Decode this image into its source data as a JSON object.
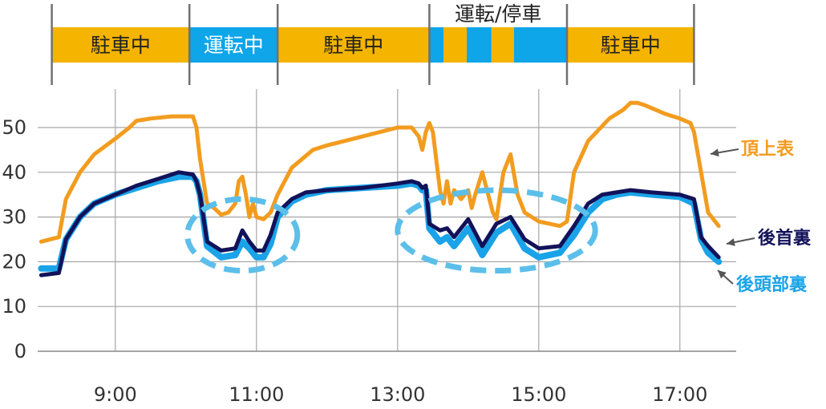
{
  "chart_data": {
    "type": "line",
    "title": "",
    "xlabel": "",
    "ylabel": "",
    "xlim": [
      7.9,
      17.6
    ],
    "ylim": [
      0,
      55
    ],
    "x_ticks": [
      9,
      11,
      13,
      15,
      17
    ],
    "x_tick_labels": [
      "9:00",
      "11:00",
      "13:00",
      "15:00",
      "17:00"
    ],
    "y_ticks": [
      0,
      10,
      20,
      30,
      40,
      50
    ],
    "y_tick_labels": [
      "0",
      "10",
      "20",
      "30",
      "40",
      "50"
    ],
    "grid": true,
    "colors": {
      "parking": "#f5b400",
      "driving": "#0ea5e9",
      "top": "#f29c1f",
      "back_neck": "#12125a",
      "back_head": "#1aa3e8",
      "ellipse": "#5cbfea",
      "grid": "#a6a6a6",
      "axis": "#888888",
      "divider": "#707070",
      "arrow": "#555555"
    },
    "states": [
      {
        "label": "駐車中",
        "start": 8.1,
        "end": 10.05,
        "color": "parking"
      },
      {
        "label": "運転中",
        "start": 10.05,
        "end": 11.3,
        "color": "driving"
      },
      {
        "label": "駐車中",
        "start": 11.3,
        "end": 13.45,
        "color": "parking"
      },
      {
        "label": "",
        "start": 13.45,
        "end": 13.65,
        "color": "driving"
      },
      {
        "label": "",
        "start": 13.65,
        "end": 13.98,
        "color": "parking"
      },
      {
        "label": "",
        "start": 13.98,
        "end": 14.33,
        "color": "driving"
      },
      {
        "label": "",
        "start": 14.33,
        "end": 14.65,
        "color": "parking"
      },
      {
        "label": "",
        "start": 14.65,
        "end": 15.4,
        "color": "driving"
      },
      {
        "label": "駐車中",
        "start": 15.4,
        "end": 17.2,
        "color": "parking"
      }
    ],
    "mixed_period": {
      "label": "運転/停車",
      "start": 13.45,
      "end": 15.4
    },
    "dividers": [
      8.1,
      10.05,
      11.3,
      13.45,
      15.4,
      17.2
    ],
    "highlights": [
      {
        "cx": 10.8,
        "cy": 26,
        "rx": 0.78,
        "ry": 8.0
      },
      {
        "cx": 14.4,
        "cy": 27,
        "rx": 1.4,
        "ry": 9.0
      }
    ],
    "series": [
      {
        "name": "頂上表",
        "color": "top",
        "x": [
          7.95,
          8.2,
          8.3,
          8.5,
          8.7,
          9.0,
          9.2,
          9.3,
          9.5,
          9.8,
          10.0,
          10.1,
          10.15,
          10.2,
          10.3,
          10.4,
          10.5,
          10.6,
          10.7,
          10.75,
          10.8,
          10.85,
          10.9,
          10.95,
          11.0,
          11.1,
          11.2,
          11.3,
          11.5,
          11.8,
          12.0,
          12.5,
          13.0,
          13.2,
          13.3,
          13.35,
          13.4,
          13.45,
          13.5,
          13.6,
          13.65,
          13.7,
          13.75,
          13.8,
          13.9,
          14.0,
          14.05,
          14.1,
          14.2,
          14.3,
          14.35,
          14.4,
          14.5,
          14.6,
          14.7,
          14.8,
          15.0,
          15.3,
          15.4,
          15.5,
          15.7,
          16.0,
          16.2,
          16.3,
          16.4,
          16.5,
          16.8,
          17.0,
          17.15,
          17.2,
          17.3,
          17.4,
          17.55
        ],
        "y": [
          24.5,
          25.5,
          34,
          40,
          44,
          47.5,
          50,
          51.5,
          52,
          52.5,
          52.5,
          52.5,
          50,
          43,
          33,
          32,
          30.5,
          31,
          33,
          38,
          39,
          35,
          30,
          33,
          30,
          29.5,
          31,
          35,
          41,
          45,
          46,
          48,
          50,
          50,
          48,
          45,
          49,
          51,
          49,
          36,
          33,
          38,
          33,
          36,
          34,
          36,
          32,
          35,
          40,
          34,
          31,
          29.5,
          40,
          44,
          35,
          31,
          29,
          28,
          29,
          40,
          47,
          52,
          54,
          55.5,
          55.5,
          55,
          53,
          52,
          51,
          49,
          40,
          31,
          28
        ]
      },
      {
        "name": "後頭部裏",
        "color": "back_head",
        "x": [
          7.95,
          8.2,
          8.3,
          8.5,
          8.7,
          9.0,
          9.3,
          9.6,
          9.9,
          10.1,
          10.15,
          10.2,
          10.3,
          10.5,
          10.7,
          10.8,
          10.9,
          11.0,
          11.1,
          11.2,
          11.3,
          11.5,
          11.7,
          12.0,
          12.5,
          13.0,
          13.2,
          13.3,
          13.35,
          13.4,
          13.45,
          13.5,
          13.6,
          13.7,
          13.8,
          13.9,
          14.0,
          14.2,
          14.4,
          14.6,
          14.8,
          15.0,
          15.3,
          15.5,
          15.7,
          15.9,
          16.1,
          16.3,
          16.6,
          17.0,
          17.2,
          17.3,
          17.4,
          17.55
        ],
        "y": [
          18.5,
          18.5,
          25,
          30,
          33,
          35,
          36.5,
          38,
          39,
          39,
          38,
          35,
          23.5,
          21,
          21.5,
          24.5,
          23,
          21,
          21,
          24,
          30,
          33.5,
          35,
          36,
          36.5,
          37,
          37.5,
          37,
          36,
          36,
          27.5,
          26.5,
          24.5,
          25.5,
          23.5,
          25.5,
          27.5,
          21.5,
          26.5,
          28.5,
          23,
          21,
          22,
          26,
          31,
          34,
          35,
          35.5,
          35,
          34.5,
          33,
          25,
          22,
          20
        ]
      },
      {
        "name": "後首裏",
        "color": "back_neck",
        "x": [
          7.95,
          8.2,
          8.3,
          8.5,
          8.7,
          9.0,
          9.3,
          9.6,
          9.9,
          10.1,
          10.15,
          10.2,
          10.3,
          10.5,
          10.7,
          10.8,
          10.9,
          11.0,
          11.1,
          11.2,
          11.3,
          11.5,
          11.7,
          12.0,
          12.5,
          13.0,
          13.2,
          13.3,
          13.35,
          13.4,
          13.45,
          13.5,
          13.6,
          13.7,
          13.8,
          13.9,
          14.0,
          14.2,
          14.4,
          14.6,
          14.8,
          15.0,
          15.3,
          15.5,
          15.7,
          15.9,
          16.1,
          16.3,
          16.6,
          17.0,
          17.2,
          17.3,
          17.4,
          17.55
        ],
        "y": [
          17,
          17.5,
          25,
          30,
          33,
          35,
          37,
          38.5,
          40,
          39.5,
          38,
          35,
          24.5,
          22.5,
          23,
          27,
          24.5,
          22.5,
          22.5,
          26,
          31,
          34,
          35.5,
          36,
          36.5,
          37.5,
          38,
          37.5,
          36.5,
          37,
          28.5,
          28,
          27,
          27.5,
          25.5,
          27.5,
          29.5,
          23.5,
          28.5,
          30,
          25,
          23,
          23.5,
          28,
          33,
          35,
          35.5,
          36,
          35.5,
          35,
          34,
          25.5,
          23.5,
          21
        ]
      }
    ],
    "series_labels": [
      {
        "name": "頂上表",
        "color": "top",
        "anchor_x": 17.25,
        "anchor_y": 44.5
      },
      {
        "name": "後首裏",
        "color": "back_neck",
        "anchor_x": 17.42,
        "anchor_y": 23.5
      },
      {
        "name": "後頭部裏",
        "color": "back_head",
        "anchor_x": 17.38,
        "anchor_y": 19
      }
    ]
  }
}
